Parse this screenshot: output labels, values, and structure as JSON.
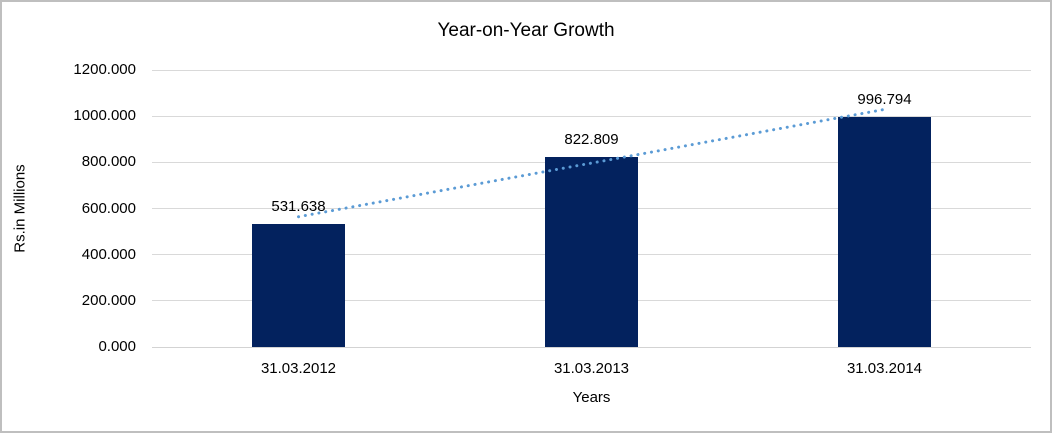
{
  "chart_data": {
    "type": "bar",
    "title": "Year-on-Year Growth",
    "xlabel": "Years",
    "ylabel": "Rs.in Millions",
    "categories": [
      "31.03.2012",
      "31.03.2013",
      "31.03.2014"
    ],
    "values": [
      531.638,
      822.809,
      996.794
    ],
    "data_labels": [
      "531.638",
      "822.809",
      "996.794"
    ],
    "ylim": [
      0,
      1200
    ],
    "ytick_step": 200,
    "ytick_labels": [
      "0.000",
      "200.000",
      "400.000",
      "600.000",
      "800.000",
      "1000.000",
      "1200.000"
    ],
    "grid": true,
    "legend": false,
    "colors": {
      "bar": "#03225e",
      "trendline": "#5b9bd5",
      "gridline": "#d9d9d9",
      "axis_line": "#d3d3d3",
      "text": "#000000",
      "background": "#ffffff",
      "frame_border": "#bfbfbf"
    },
    "trendline": {
      "type": "linear",
      "style": "dotted",
      "drawn_in_front_of_bars": true
    }
  }
}
